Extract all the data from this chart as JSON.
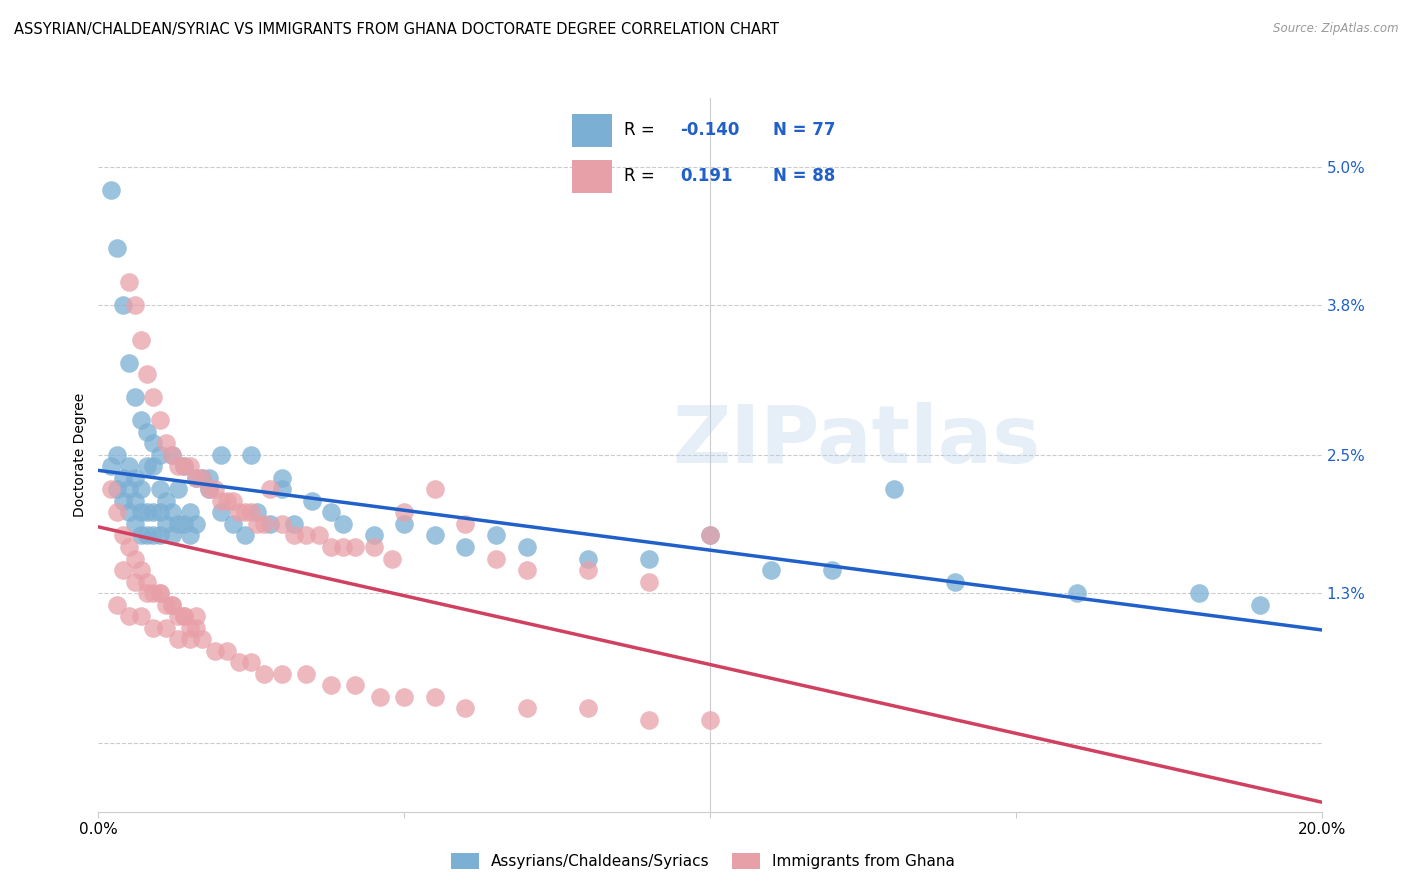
{
  "title": "ASSYRIAN/CHALDEAN/SYRIAC VS IMMIGRANTS FROM GHANA DOCTORATE DEGREE CORRELATION CHART",
  "source": "Source: ZipAtlas.com",
  "ylabel": "Doctorate Degree",
  "color_blue": "#7bafd4",
  "color_pink": "#e8a0a8",
  "color_blue_line": "#2060c8",
  "color_pink_line": "#d04060",
  "watermark": "ZIPatlas",
  "xmin": 0.0,
  "xmax": 0.2,
  "ymin": -0.006,
  "ymax": 0.056,
  "ytick_vals": [
    0.0,
    0.013,
    0.025,
    0.038,
    0.05
  ],
  "ytick_labels": [
    "",
    "1.3%",
    "2.5%",
    "3.8%",
    "5.0%"
  ],
  "xtick_vals": [
    0.0,
    0.05,
    0.1,
    0.15,
    0.2
  ],
  "xtick_labels": [
    "0.0%",
    "",
    "",
    "",
    "20.0%"
  ],
  "blue_x": [
    0.002,
    0.003,
    0.003,
    0.004,
    0.004,
    0.005,
    0.005,
    0.005,
    0.006,
    0.006,
    0.006,
    0.007,
    0.007,
    0.007,
    0.008,
    0.008,
    0.008,
    0.009,
    0.009,
    0.009,
    0.01,
    0.01,
    0.01,
    0.011,
    0.011,
    0.012,
    0.012,
    0.013,
    0.013,
    0.014,
    0.015,
    0.015,
    0.016,
    0.017,
    0.018,
    0.02,
    0.022,
    0.024,
    0.026,
    0.028,
    0.03,
    0.032,
    0.035,
    0.038,
    0.04,
    0.045,
    0.05,
    0.055,
    0.06,
    0.065,
    0.07,
    0.08,
    0.09,
    0.1,
    0.11,
    0.12,
    0.13,
    0.14,
    0.16,
    0.18,
    0.19,
    0.002,
    0.003,
    0.004,
    0.005,
    0.006,
    0.007,
    0.008,
    0.009,
    0.01,
    0.012,
    0.014,
    0.016,
    0.018,
    0.02,
    0.025,
    0.03
  ],
  "blue_y": [
    0.024,
    0.022,
    0.025,
    0.021,
    0.023,
    0.02,
    0.022,
    0.024,
    0.019,
    0.021,
    0.023,
    0.018,
    0.02,
    0.022,
    0.018,
    0.02,
    0.024,
    0.018,
    0.02,
    0.024,
    0.018,
    0.02,
    0.022,
    0.019,
    0.021,
    0.018,
    0.02,
    0.019,
    0.022,
    0.019,
    0.018,
    0.02,
    0.019,
    0.023,
    0.022,
    0.02,
    0.019,
    0.018,
    0.02,
    0.019,
    0.022,
    0.019,
    0.021,
    0.02,
    0.019,
    0.018,
    0.019,
    0.018,
    0.017,
    0.018,
    0.017,
    0.016,
    0.016,
    0.018,
    0.015,
    0.015,
    0.022,
    0.014,
    0.013,
    0.013,
    0.012,
    0.048,
    0.043,
    0.038,
    0.033,
    0.03,
    0.028,
    0.027,
    0.026,
    0.025,
    0.025,
    0.024,
    0.023,
    0.023,
    0.025,
    0.025,
    0.023
  ],
  "pink_x": [
    0.002,
    0.003,
    0.004,
    0.005,
    0.005,
    0.006,
    0.006,
    0.007,
    0.007,
    0.008,
    0.008,
    0.009,
    0.009,
    0.01,
    0.01,
    0.011,
    0.011,
    0.012,
    0.012,
    0.013,
    0.013,
    0.014,
    0.014,
    0.015,
    0.015,
    0.016,
    0.016,
    0.017,
    0.018,
    0.019,
    0.02,
    0.021,
    0.022,
    0.023,
    0.024,
    0.025,
    0.026,
    0.027,
    0.028,
    0.03,
    0.032,
    0.034,
    0.036,
    0.038,
    0.04,
    0.042,
    0.045,
    0.048,
    0.05,
    0.055,
    0.06,
    0.065,
    0.07,
    0.08,
    0.09,
    0.1,
    0.003,
    0.005,
    0.007,
    0.009,
    0.011,
    0.013,
    0.015,
    0.017,
    0.019,
    0.021,
    0.023,
    0.025,
    0.027,
    0.03,
    0.034,
    0.038,
    0.042,
    0.046,
    0.05,
    0.055,
    0.06,
    0.07,
    0.08,
    0.09,
    0.1,
    0.004,
    0.006,
    0.008,
    0.01,
    0.012,
    0.014,
    0.016
  ],
  "pink_y": [
    0.022,
    0.02,
    0.018,
    0.04,
    0.017,
    0.038,
    0.016,
    0.035,
    0.015,
    0.032,
    0.014,
    0.03,
    0.013,
    0.028,
    0.013,
    0.026,
    0.012,
    0.025,
    0.012,
    0.024,
    0.011,
    0.024,
    0.011,
    0.024,
    0.01,
    0.023,
    0.01,
    0.023,
    0.022,
    0.022,
    0.021,
    0.021,
    0.021,
    0.02,
    0.02,
    0.02,
    0.019,
    0.019,
    0.022,
    0.019,
    0.018,
    0.018,
    0.018,
    0.017,
    0.017,
    0.017,
    0.017,
    0.016,
    0.02,
    0.022,
    0.019,
    0.016,
    0.015,
    0.015,
    0.014,
    0.018,
    0.012,
    0.011,
    0.011,
    0.01,
    0.01,
    0.009,
    0.009,
    0.009,
    0.008,
    0.008,
    0.007,
    0.007,
    0.006,
    0.006,
    0.006,
    0.005,
    0.005,
    0.004,
    0.004,
    0.004,
    0.003,
    0.003,
    0.003,
    0.002,
    0.002,
    0.015,
    0.014,
    0.013,
    0.013,
    0.012,
    0.011,
    0.011
  ]
}
